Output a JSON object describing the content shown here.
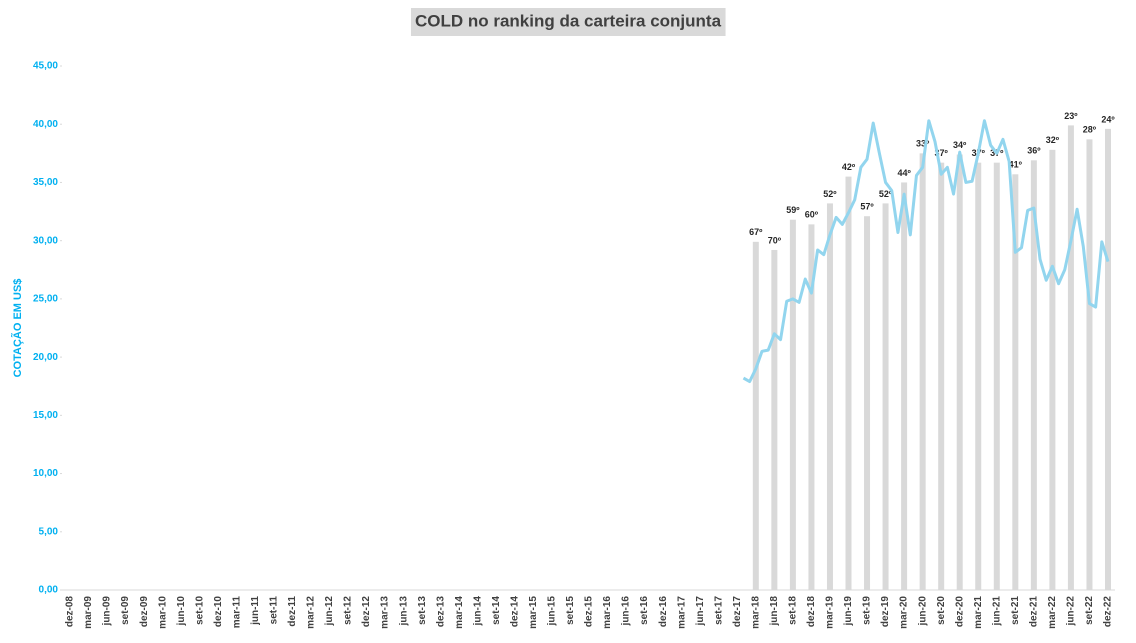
{
  "chart_data": {
    "type": "combo",
    "title": "COLD no ranking da carteira conjunta",
    "y_label": "COTAÇÃO EM US$",
    "ylim": [
      0,
      45
    ],
    "yticks": [
      {
        "value": 0,
        "label": "0,00"
      },
      {
        "value": 5,
        "label": "5,00"
      },
      {
        "value": 10,
        "label": "10,00"
      },
      {
        "value": 15,
        "label": "15,00"
      },
      {
        "value": 20,
        "label": "20,00"
      },
      {
        "value": 25,
        "label": "25,00"
      },
      {
        "value": 30,
        "label": "30,00"
      },
      {
        "value": 35,
        "label": "35,00"
      },
      {
        "value": 40,
        "label": "40,00"
      },
      {
        "value": 45,
        "label": "45,00"
      }
    ],
    "categories": [
      "dez-08",
      null,
      null,
      "mar-09",
      null,
      null,
      "jun-09",
      null,
      null,
      "set-09",
      null,
      null,
      "dez-09",
      null,
      null,
      "mar-10",
      null,
      null,
      "jun-10",
      null,
      null,
      "set-10",
      null,
      null,
      "dez-10",
      null,
      null,
      "mar-11",
      null,
      null,
      "jun-11",
      null,
      null,
      "set-11",
      null,
      null,
      "dez-11",
      null,
      null,
      "mar-12",
      null,
      null,
      "jun-12",
      null,
      null,
      "set-12",
      null,
      null,
      "dez-12",
      null,
      null,
      "mar-13",
      null,
      null,
      "jun-13",
      null,
      null,
      "set-13",
      null,
      null,
      "dez-13",
      null,
      null,
      "mar-14",
      null,
      null,
      "jun-14",
      null,
      null,
      "set-14",
      null,
      null,
      "dez-14",
      null,
      null,
      "mar-15",
      null,
      null,
      "jun-15",
      null,
      null,
      "set-15",
      null,
      null,
      "dez-15",
      null,
      null,
      "mar-16",
      null,
      null,
      "jun-16",
      null,
      null,
      "set-16",
      null,
      null,
      "dez-16",
      null,
      null,
      "mar-17",
      null,
      null,
      "jun-17",
      null,
      null,
      "set-17",
      null,
      null,
      "dez-17",
      null,
      null,
      "mar-18",
      null,
      null,
      "jun-18",
      null,
      null,
      "set-18",
      null,
      null,
      "dez-18",
      null,
      null,
      "mar-19",
      null,
      null,
      "jun-19",
      null,
      null,
      "set-19",
      null,
      null,
      "dez-19",
      null,
      null,
      "mar-20",
      null,
      null,
      "jun-20",
      null,
      null,
      "set-20",
      null,
      null,
      "dez-20",
      null,
      null,
      "mar-21",
      null,
      null,
      "jun-21",
      null,
      null,
      "set-21",
      null,
      null,
      "dez-21",
      null,
      null,
      "mar-22",
      null,
      null,
      "jun-22",
      null,
      null,
      "set-22",
      null,
      null,
      "dez-22"
    ],
    "series": [
      {
        "type": "bar",
        "color": "#d9d9d9",
        "values": [
          null,
          null,
          null,
          null,
          null,
          null,
          null,
          null,
          null,
          null,
          null,
          null,
          null,
          null,
          null,
          null,
          null,
          null,
          null,
          null,
          null,
          null,
          null,
          null,
          null,
          null,
          null,
          null,
          null,
          null,
          null,
          null,
          null,
          null,
          null,
          null,
          null,
          null,
          null,
          null,
          null,
          null,
          null,
          null,
          null,
          null,
          null,
          null,
          null,
          null,
          null,
          null,
          null,
          null,
          null,
          null,
          null,
          null,
          null,
          null,
          null,
          null,
          null,
          null,
          null,
          null,
          null,
          null,
          null,
          null,
          null,
          null,
          null,
          null,
          null,
          null,
          null,
          null,
          null,
          null,
          null,
          null,
          null,
          null,
          null,
          null,
          null,
          null,
          null,
          null,
          null,
          null,
          null,
          null,
          null,
          null,
          null,
          null,
          null,
          null,
          null,
          null,
          null,
          null,
          null,
          null,
          null,
          null,
          null,
          null,
          null,
          29.9,
          null,
          null,
          29.2,
          null,
          null,
          31.8,
          null,
          null,
          31.4,
          null,
          null,
          33.2,
          null,
          null,
          35.5,
          null,
          null,
          32.1,
          null,
          null,
          33.2,
          null,
          null,
          35.0,
          null,
          null,
          37.5,
          null,
          null,
          36.7,
          null,
          null,
          37.4,
          null,
          null,
          36.7,
          null,
          null,
          36.7,
          null,
          null,
          35.7,
          null,
          null,
          36.9,
          null,
          null,
          37.8,
          null,
          null,
          39.9,
          null,
          null,
          38.7,
          null,
          null,
          39.6
        ],
        "annotations": [
          null,
          null,
          null,
          null,
          null,
          null,
          null,
          null,
          null,
          null,
          null,
          null,
          null,
          null,
          null,
          null,
          null,
          null,
          null,
          null,
          null,
          null,
          null,
          null,
          null,
          null,
          null,
          null,
          null,
          null,
          null,
          null,
          null,
          null,
          null,
          null,
          null,
          null,
          null,
          null,
          null,
          null,
          null,
          null,
          null,
          null,
          null,
          null,
          null,
          null,
          null,
          null,
          null,
          null,
          null,
          null,
          null,
          null,
          null,
          null,
          null,
          null,
          null,
          null,
          null,
          null,
          null,
          null,
          null,
          null,
          null,
          null,
          null,
          null,
          null,
          null,
          null,
          null,
          null,
          null,
          null,
          null,
          null,
          null,
          null,
          null,
          null,
          null,
          null,
          null,
          null,
          null,
          null,
          null,
          null,
          null,
          null,
          null,
          null,
          null,
          null,
          null,
          null,
          null,
          null,
          null,
          null,
          null,
          null,
          null,
          null,
          "67º",
          null,
          null,
          "70º",
          null,
          null,
          "59º",
          null,
          null,
          "60º",
          null,
          null,
          "52º",
          null,
          null,
          "42º",
          null,
          null,
          "57º",
          null,
          null,
          "52º",
          null,
          null,
          "44º",
          null,
          null,
          "33º",
          null,
          null,
          "37º",
          null,
          null,
          "34º",
          null,
          null,
          "37º",
          null,
          null,
          "37º",
          null,
          null,
          "41º",
          null,
          null,
          "36º",
          null,
          null,
          "32º",
          null,
          null,
          "23º",
          null,
          null,
          "28º",
          null,
          null,
          "24º"
        ]
      },
      {
        "type": "line",
        "color": "#92d5ee",
        "values": [
          null,
          null,
          null,
          null,
          null,
          null,
          null,
          null,
          null,
          null,
          null,
          null,
          null,
          null,
          null,
          null,
          null,
          null,
          null,
          null,
          null,
          null,
          null,
          null,
          null,
          null,
          null,
          null,
          null,
          null,
          null,
          null,
          null,
          null,
          null,
          null,
          null,
          null,
          null,
          null,
          null,
          null,
          null,
          null,
          null,
          null,
          null,
          null,
          null,
          null,
          null,
          null,
          null,
          null,
          null,
          null,
          null,
          null,
          null,
          null,
          null,
          null,
          null,
          null,
          null,
          null,
          null,
          null,
          null,
          null,
          null,
          null,
          null,
          null,
          null,
          null,
          null,
          null,
          null,
          null,
          null,
          null,
          null,
          null,
          null,
          null,
          null,
          null,
          null,
          null,
          null,
          null,
          null,
          null,
          null,
          null,
          null,
          null,
          null,
          null,
          null,
          null,
          null,
          null,
          null,
          null,
          null,
          null,
          null,
          18.2,
          17.9,
          19.0,
          20.5,
          20.6,
          22.0,
          21.5,
          24.8,
          25.0,
          24.7,
          26.7,
          25.5,
          29.2,
          28.8,
          30.5,
          32.0,
          31.4,
          32.4,
          33.5,
          36.3,
          37.0,
          40.1,
          37.5,
          35.0,
          34.3,
          30.7,
          34.0,
          30.5,
          35.6,
          36.3,
          40.3,
          38.5,
          35.7,
          36.3,
          34.0,
          37.6,
          35.0,
          35.1,
          37.5,
          40.3,
          38.2,
          37.5,
          38.7,
          36.8,
          29.0,
          29.4,
          32.6,
          32.8,
          28.4,
          26.6,
          27.8,
          26.3,
          27.5,
          30.0,
          32.7,
          29.5,
          24.6,
          24.3,
          29.9,
          28.2
        ]
      }
    ]
  }
}
